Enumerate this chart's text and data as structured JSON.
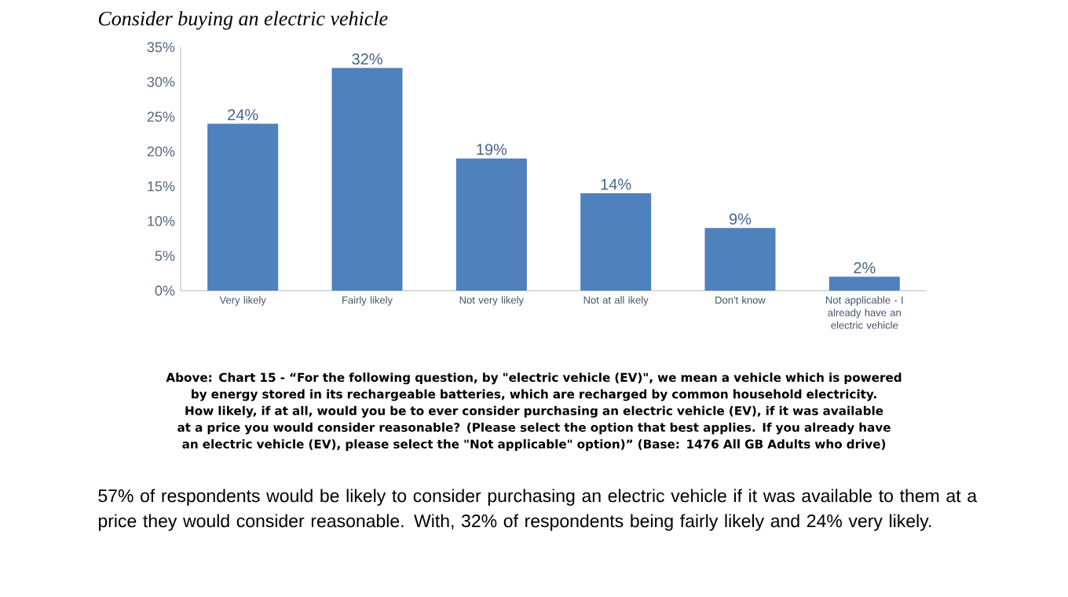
{
  "chart_data": {
    "type": "bar",
    "title": "*Consider buying an electric vehicle*",
    "categories": [
      "Very likely",
      "Fairly likely",
      "Not very likely",
      "Not at all ikely",
      "Don't know",
      "Not applicable - I already have an electric vehicle"
    ],
    "values": [
      24,
      32,
      19,
      14,
      9,
      2
    ],
    "value_labels": [
      "24%",
      "32%",
      "19%",
      "14%",
      "9%",
      "2%"
    ],
    "color": "#4f81bd",
    "ylim": [
      0,
      35
    ],
    "yticks": [
      {
        "value": 0,
        "label": "0%"
      },
      {
        "value": 5,
        "label": "5%"
      },
      {
        "value": 10,
        "label": "10%"
      },
      {
        "value": 15,
        "label": "15%"
      },
      {
        "value": 20,
        "label": "20%"
      },
      {
        "value": 25,
        "label": "25%"
      },
      {
        "value": 30,
        "label": "30%"
      },
      {
        "value": 35,
        "label": "35%"
      }
    ],
    "grid": false,
    "annotations": [
      "Above: Chart 15 - “For the following question, by \"electric vehicle (EV)\", we mean a vehicle which is powered by energy stored in its rechargeable batteries, which are recharged by common household electricity. How likely, if at all, would you be to ever consider purchasing an electric vehicle (EV), if it was available at a price you would consider reasonable? (Please select the option that best applies. If you already have an electric vehicle (EV), please select the \"Not applicable\" option)” (Base: 1476 All GB Adults who drive)",
      "57% of respondents would be likely to consider purchasing an electric vehicle if it was available to them at a price they would consider reasonable. With, 32% of respondents being fairly likely and 24% very likely."
    ]
  }
}
